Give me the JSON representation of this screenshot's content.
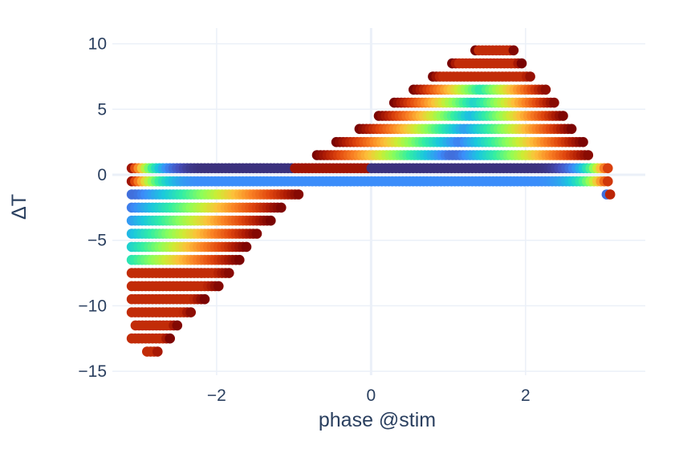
{
  "chart_data": {
    "type": "scatter",
    "title": "",
    "xlabel": "phase @stim",
    "ylabel": "ΔT",
    "xlim": [
      -3.35,
      3.55
    ],
    "ylim": [
      -15.3,
      11.2
    ],
    "xticks": [
      {
        "value": -2,
        "label": "−2"
      },
      {
        "value": 0,
        "label": "0"
      },
      {
        "value": 2,
        "label": "2"
      }
    ],
    "yticks": [
      {
        "value": -15,
        "label": "−15"
      },
      {
        "value": -10,
        "label": "−10"
      },
      {
        "value": -5,
        "label": "−5"
      },
      {
        "value": 0,
        "label": "0"
      },
      {
        "value": 5,
        "label": "5"
      },
      {
        "value": 10,
        "label": "10"
      }
    ],
    "grid": true,
    "colorscale": "Turbo",
    "colors": {
      "grid": "#ebf0f8",
      "zeroline": "#ebf0f8",
      "text": "#2a3f5f",
      "background": "#ffffff"
    },
    "rows": [
      {
        "y": 9.5,
        "segments": [
          [
            1.35,
            1.85
          ]
        ]
      },
      {
        "y": 8.5,
        "segments": [
          [
            1.05,
            1.95
          ]
        ]
      },
      {
        "y": 7.5,
        "segments": [
          [
            0.8,
            2.1
          ]
        ]
      },
      {
        "y": 6.5,
        "segments": [
          [
            0.55,
            2.3
          ]
        ]
      },
      {
        "y": 5.5,
        "segments": [
          [
            0.3,
            2.4
          ]
        ]
      },
      {
        "y": 4.5,
        "segments": [
          [
            0.1,
            2.5
          ]
        ]
      },
      {
        "y": 3.5,
        "segments": [
          [
            -0.15,
            2.6
          ]
        ]
      },
      {
        "y": 2.5,
        "segments": [
          [
            -0.45,
            2.75
          ]
        ]
      },
      {
        "y": 1.5,
        "segments": [
          [
            -0.7,
            2.85
          ]
        ]
      },
      {
        "y": 0.5,
        "segments": [
          [
            -3.1,
            3.1
          ]
        ]
      },
      {
        "y": -0.5,
        "segments": [
          [
            -3.1,
            3.1
          ]
        ]
      },
      {
        "y": -1.5,
        "segments": [
          [
            -3.1,
            -0.9
          ],
          [
            3.05,
            3.1
          ]
        ]
      },
      {
        "y": -2.5,
        "segments": [
          [
            -3.1,
            -1.15
          ]
        ]
      },
      {
        "y": -3.5,
        "segments": [
          [
            -3.1,
            -1.3
          ]
        ]
      },
      {
        "y": -4.5,
        "segments": [
          [
            -3.1,
            -1.45
          ]
        ]
      },
      {
        "y": -5.5,
        "segments": [
          [
            -3.1,
            -1.6
          ]
        ]
      },
      {
        "y": -6.5,
        "segments": [
          [
            -3.1,
            -1.7
          ]
        ]
      },
      {
        "y": -7.5,
        "segments": [
          [
            -3.1,
            -1.8
          ]
        ]
      },
      {
        "y": -8.5,
        "segments": [
          [
            -3.1,
            -1.95
          ]
        ]
      },
      {
        "y": -9.5,
        "segments": [
          [
            -3.1,
            -2.15
          ]
        ]
      },
      {
        "y": -10.5,
        "segments": [
          [
            -3.1,
            -2.3
          ]
        ]
      },
      {
        "y": -11.5,
        "segments": [
          [
            -3.05,
            -2.5
          ]
        ]
      },
      {
        "y": -12.5,
        "segments": [
          [
            -3.1,
            -2.6
          ]
        ]
      },
      {
        "y": -13.5,
        "segments": [
          [
            -2.9,
            -2.75
          ]
        ]
      }
    ]
  }
}
